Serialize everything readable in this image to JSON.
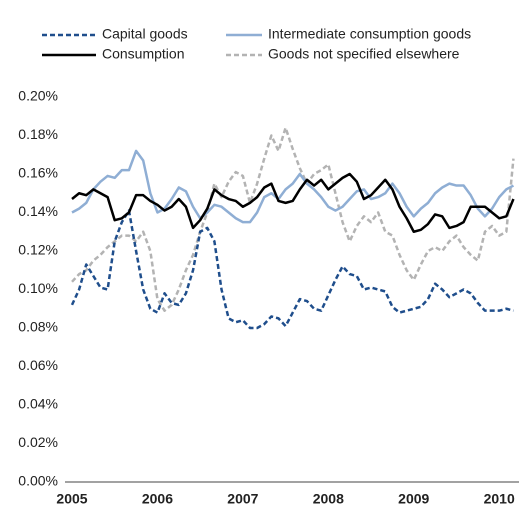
{
  "chart_data": {
    "type": "line",
    "legend": "top",
    "categories": [
      "2005",
      null,
      null,
      null,
      null,
      null,
      null,
      null,
      null,
      null,
      null,
      null,
      "2006",
      null,
      null,
      null,
      null,
      null,
      null,
      null,
      null,
      null,
      null,
      null,
      "2007",
      null,
      null,
      null,
      null,
      null,
      null,
      null,
      null,
      null,
      null,
      null,
      "2008",
      null,
      null,
      null,
      null,
      null,
      null,
      null,
      null,
      null,
      null,
      null,
      "2009",
      null,
      null,
      null,
      null,
      null,
      null,
      null,
      null,
      null,
      null,
      null,
      "2010",
      null,
      null
    ],
    "ylim": [
      0,
      0.2
    ],
    "yticks": [
      {
        "value": 0,
        "label": "0.00%"
      },
      {
        "value": 0.02,
        "label": "0.02%"
      },
      {
        "value": 0.04,
        "label": "0.04%"
      },
      {
        "value": 0.06,
        "label": "0.06%"
      },
      {
        "value": 0.08,
        "label": "0.08%"
      },
      {
        "value": 0.1,
        "label": "0.10%"
      },
      {
        "value": 0.12,
        "label": "0.12%"
      },
      {
        "value": 0.14,
        "label": "0.14%"
      },
      {
        "value": 0.16,
        "label": "0.16%"
      },
      {
        "value": 0.18,
        "label": "0.18%"
      },
      {
        "value": 0.2,
        "label": "0.20%"
      }
    ],
    "series": [
      {
        "name": "Capital goods",
        "color": "#1f4e8c",
        "dashed": true,
        "values": [
          0.092,
          0.1,
          0.113,
          0.107,
          0.101,
          0.1,
          0.125,
          0.135,
          0.141,
          0.12,
          0.1,
          0.09,
          0.088,
          0.098,
          0.093,
          0.092,
          0.098,
          0.11,
          0.13,
          0.132,
          0.125,
          0.1,
          0.085,
          0.083,
          0.084,
          0.08,
          0.08,
          0.082,
          0.086,
          0.085,
          0.081,
          0.088,
          0.095,
          0.094,
          0.09,
          0.089,
          0.097,
          0.105,
          0.112,
          0.108,
          0.107,
          0.1,
          0.101,
          0.1,
          0.099,
          0.091,
          0.088,
          0.089,
          0.09,
          0.091,
          0.095,
          0.103,
          0.1,
          0.096,
          0.098,
          0.1,
          0.098,
          0.093,
          0.089,
          0.089,
          0.089,
          0.09,
          0.089
        ]
      },
      {
        "name": "Intermediate consumption goods",
        "color": "#8faed4",
        "dashed": false,
        "values": [
          0.14,
          0.142,
          0.145,
          0.152,
          0.156,
          0.159,
          0.158,
          0.162,
          0.162,
          0.172,
          0.167,
          0.15,
          0.14,
          0.142,
          0.147,
          0.153,
          0.151,
          0.143,
          0.137,
          0.14,
          0.144,
          0.143,
          0.14,
          0.137,
          0.135,
          0.135,
          0.14,
          0.148,
          0.15,
          0.147,
          0.152,
          0.155,
          0.16,
          0.155,
          0.152,
          0.148,
          0.143,
          0.141,
          0.143,
          0.147,
          0.151,
          0.152,
          0.147,
          0.148,
          0.15,
          0.155,
          0.15,
          0.143,
          0.138,
          0.142,
          0.145,
          0.15,
          0.153,
          0.155,
          0.154,
          0.154,
          0.149,
          0.142,
          0.138,
          0.142,
          0.148,
          0.152,
          0.154
        ]
      },
      {
        "name": "Consumption",
        "color": "#000000",
        "dashed": false,
        "values": [
          0.147,
          0.15,
          0.149,
          0.152,
          0.15,
          0.148,
          0.136,
          0.137,
          0.14,
          0.149,
          0.149,
          0.146,
          0.144,
          0.141,
          0.143,
          0.147,
          0.143,
          0.132,
          0.136,
          0.142,
          0.152,
          0.149,
          0.147,
          0.146,
          0.143,
          0.145,
          0.148,
          0.153,
          0.155,
          0.146,
          0.145,
          0.146,
          0.152,
          0.157,
          0.154,
          0.157,
          0.152,
          0.155,
          0.158,
          0.16,
          0.156,
          0.147,
          0.149,
          0.153,
          0.157,
          0.152,
          0.143,
          0.137,
          0.13,
          0.131,
          0.134,
          0.139,
          0.138,
          0.132,
          0.133,
          0.135,
          0.143,
          0.143,
          0.143,
          0.14,
          0.137,
          0.138,
          0.147
        ]
      },
      {
        "name": "Goods not specified elsewhere",
        "color": "#b3b3b3",
        "dashed": true,
        "values": [
          0.104,
          0.108,
          0.11,
          0.115,
          0.118,
          0.122,
          0.125,
          0.128,
          0.128,
          0.125,
          0.13,
          0.12,
          0.095,
          0.089,
          0.092,
          0.1,
          0.11,
          0.118,
          0.13,
          0.14,
          0.155,
          0.148,
          0.156,
          0.161,
          0.159,
          0.145,
          0.155,
          0.168,
          0.18,
          0.172,
          0.184,
          0.173,
          0.163,
          0.155,
          0.16,
          0.162,
          0.165,
          0.15,
          0.135,
          0.125,
          0.133,
          0.138,
          0.135,
          0.14,
          0.13,
          0.128,
          0.118,
          0.11,
          0.105,
          0.113,
          0.12,
          0.122,
          0.12,
          0.125,
          0.128,
          0.122,
          0.118,
          0.115,
          0.13,
          0.133,
          0.128,
          0.13,
          0.168
        ]
      }
    ]
  }
}
